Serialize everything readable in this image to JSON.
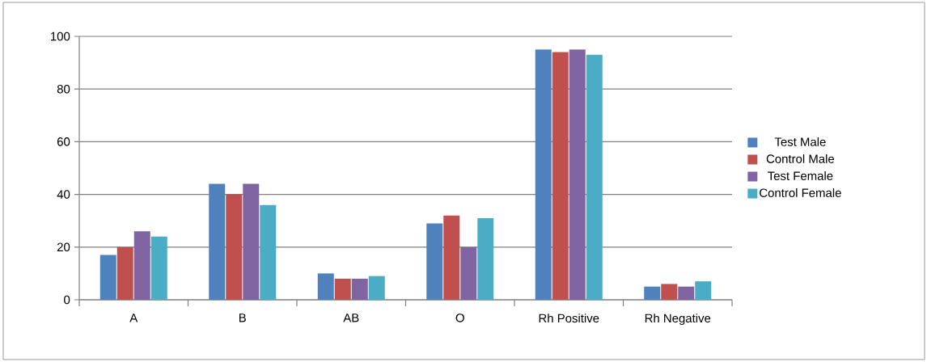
{
  "chart_data": {
    "type": "bar",
    "categories": [
      "A",
      "B",
      "AB",
      "O",
      "Rh Positive",
      "Rh Negative"
    ],
    "series": [
      {
        "name": "Test Male",
        "color": "#4f81bd",
        "values": [
          17,
          44,
          10,
          29,
          95,
          5
        ]
      },
      {
        "name": "Control Male",
        "color": "#c0504d",
        "values": [
          20,
          40,
          8,
          32,
          94,
          6
        ]
      },
      {
        "name": "Test Female",
        "color": "#8064a2",
        "values": [
          26,
          44,
          8,
          20,
          95,
          5
        ]
      },
      {
        "name": "Control Female",
        "color": "#4bacc6",
        "values": [
          24,
          36,
          9,
          31,
          93,
          7
        ]
      }
    ],
    "ylim": [
      0,
      100
    ],
    "yticks": [
      0,
      20,
      40,
      60,
      80,
      100
    ],
    "grid": "y",
    "legend": "right"
  }
}
